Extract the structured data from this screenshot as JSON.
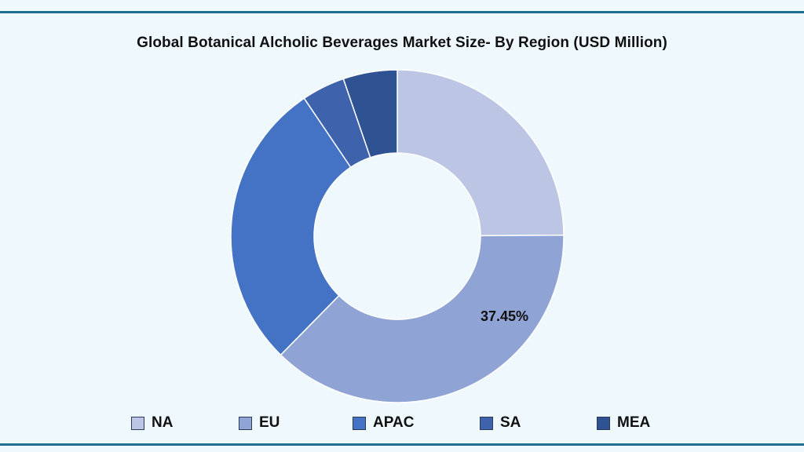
{
  "chart_data": {
    "type": "pie",
    "donut": true,
    "title": "Global Botanical Alcholic Beverages Market Size- By Region (USD Million)",
    "categories": [
      "NA",
      "EU",
      "APAC",
      "SA",
      "MEA"
    ],
    "values": [
      24.9,
      37.45,
      28.2,
      4.2,
      5.25
    ],
    "unit": "%",
    "colors": [
      "#bcc5e3",
      "#8fa3d5",
      "#4472c4",
      "#3e63ac",
      "#2f5292"
    ],
    "data_labels": [
      {
        "category": "EU",
        "text": "37.45%"
      }
    ],
    "legend_position": "bottom",
    "start_angle_deg": 0,
    "direction": "clockwise"
  }
}
